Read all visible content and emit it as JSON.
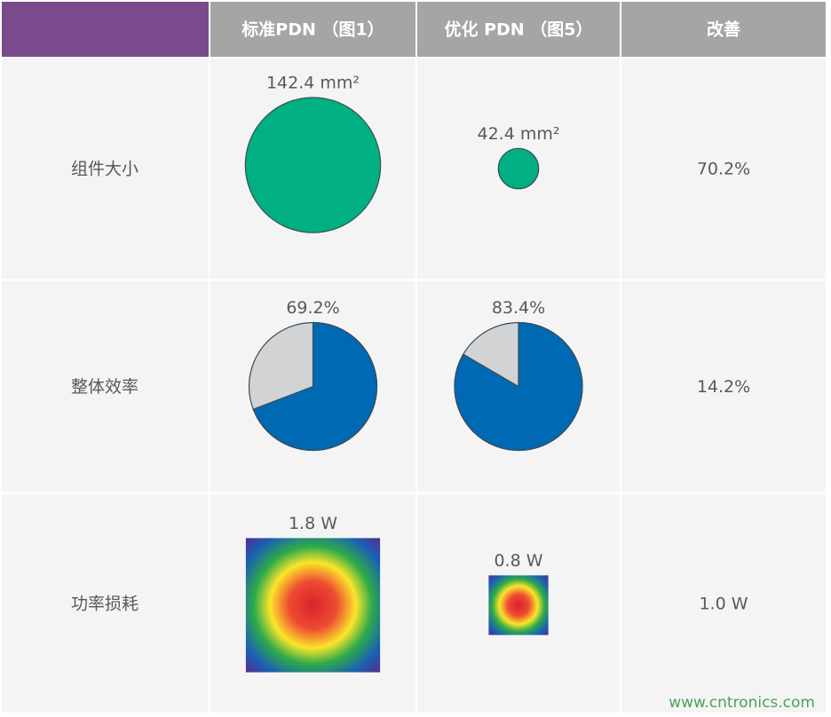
{
  "header": [
    "标准PDN （图1）",
    "优化 PDN （图5）",
    "改善"
  ],
  "rows": [
    {
      "label": "组件大小",
      "type": "circle",
      "cells": [
        {
          "value": 142.4,
          "value_label": "142.4 mm²"
        },
        {
          "value": 42.4,
          "value_label": "42.4 mm²"
        }
      ],
      "improvement": "70.2%"
    },
    {
      "label": "整体效率",
      "type": "pie",
      "cells": [
        {
          "value": 69.2,
          "value_label": "69.2%"
        },
        {
          "value": 83.4,
          "value_label": "83.4%"
        }
      ],
      "improvement": "14.2%"
    },
    {
      "label": "功率损耗",
      "type": "heat",
      "cells": [
        {
          "value": 1.8,
          "value_label": "1.8 W"
        },
        {
          "value": 0.8,
          "value_label": "0.8 W"
        }
      ],
      "improvement": "1.0 W"
    }
  ],
  "watermark": "www.cntronics.com"
}
